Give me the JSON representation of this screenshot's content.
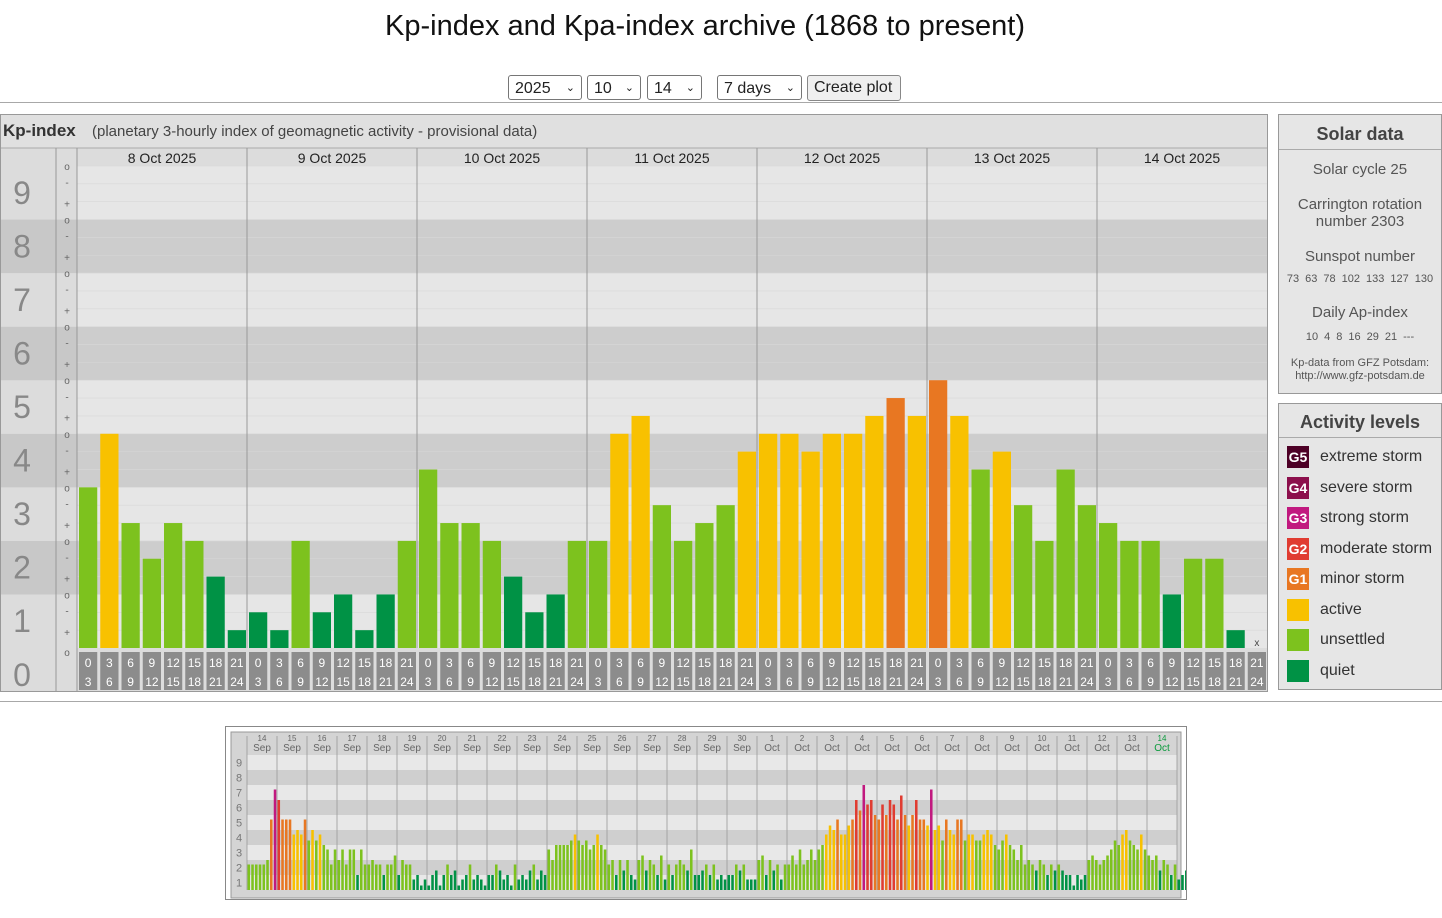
{
  "page": {
    "title": "Kp-index and Kpa-index archive (1868 to present)"
  },
  "controls": {
    "year": "2025",
    "month": "10",
    "day": "14",
    "range": "7 days",
    "create_button": "Create plot"
  },
  "colors": {
    "quiet": "#009245",
    "unsettled": "#7dc21e",
    "active": "#f8c100",
    "minor_storm": "#e87722",
    "moderate_storm": "#e03c31",
    "strong_storm": "#c1197f",
    "severe_storm": "#8c0f4c",
    "extreme_storm": "#4d0026"
  },
  "chart_data": [
    {
      "type": "bar",
      "title": "Kp-index",
      "subtitle": "(planetary 3-hourly index of geomagnetic activity - provisional data)",
      "ylim": [
        0,
        9
      ],
      "y_ticks": [
        "0",
        "1",
        "2",
        "3",
        "4",
        "5",
        "6",
        "7",
        "8",
        "9"
      ],
      "y_minor_ticks": [
        "-",
        "o",
        "+"
      ],
      "days": [
        "8 Oct 2025",
        "9 Oct 2025",
        "10 Oct 2025",
        "11 Oct 2025",
        "12 Oct 2025",
        "13 Oct 2025",
        "14 Oct 2025"
      ],
      "interval_labels": [
        [
          "0",
          "3"
        ],
        [
          "3",
          "6"
        ],
        [
          "6",
          "9"
        ],
        [
          "9",
          "12"
        ],
        [
          "12",
          "15"
        ],
        [
          "15",
          "18"
        ],
        [
          "18",
          "21"
        ],
        [
          "21",
          "24"
        ]
      ],
      "missing_marker": "x",
      "values": [
        3.0,
        4.0,
        2.333,
        1.667,
        2.333,
        2.0,
        1.333,
        0.333,
        0.667,
        0.333,
        2.0,
        0.667,
        1.0,
        0.333,
        1.0,
        2.0,
        3.333,
        2.333,
        2.333,
        2.0,
        1.333,
        0.667,
        1.0,
        2.0,
        2.0,
        4.0,
        4.333,
        2.667,
        2.0,
        2.333,
        2.667,
        3.667,
        4.0,
        4.0,
        3.667,
        4.0,
        4.0,
        4.333,
        4.667,
        4.333,
        5.0,
        4.333,
        3.333,
        3.667,
        2.667,
        2.0,
        3.333,
        2.667,
        2.333,
        2.0,
        2.0,
        1.0,
        1.667,
        1.667,
        0.333,
        null
      ]
    },
    {
      "type": "bar",
      "title": "",
      "ylim": [
        0,
        9
      ],
      "y_ticks": [
        "1",
        "2",
        "3",
        "4",
        "5",
        "6",
        "7",
        "8",
        "9"
      ],
      "days": [
        {
          "d": "14",
          "m": "Sep"
        },
        {
          "d": "15",
          "m": "Sep"
        },
        {
          "d": "16",
          "m": "Sep"
        },
        {
          "d": "17",
          "m": "Sep"
        },
        {
          "d": "18",
          "m": "Sep"
        },
        {
          "d": "19",
          "m": "Sep"
        },
        {
          "d": "20",
          "m": "Sep"
        },
        {
          "d": "21",
          "m": "Sep"
        },
        {
          "d": "22",
          "m": "Sep"
        },
        {
          "d": "23",
          "m": "Sep"
        },
        {
          "d": "24",
          "m": "Sep"
        },
        {
          "d": "25",
          "m": "Sep"
        },
        {
          "d": "26",
          "m": "Sep"
        },
        {
          "d": "27",
          "m": "Sep"
        },
        {
          "d": "28",
          "m": "Sep"
        },
        {
          "d": "29",
          "m": "Sep"
        },
        {
          "d": "30",
          "m": "Sep"
        },
        {
          "d": "1",
          "m": "Oct"
        },
        {
          "d": "2",
          "m": "Oct"
        },
        {
          "d": "3",
          "m": "Oct"
        },
        {
          "d": "4",
          "m": "Oct"
        },
        {
          "d": "5",
          "m": "Oct"
        },
        {
          "d": "6",
          "m": "Oct"
        },
        {
          "d": "7",
          "m": "Oct"
        },
        {
          "d": "8",
          "m": "Oct"
        },
        {
          "d": "9",
          "m": "Oct"
        },
        {
          "d": "10",
          "m": "Oct"
        },
        {
          "d": "11",
          "m": "Oct"
        },
        {
          "d": "12",
          "m": "Oct"
        },
        {
          "d": "13",
          "m": "Oct"
        },
        {
          "d": "14",
          "m": "Oct"
        }
      ],
      "highlight_day": "14 Oct",
      "values": [
        1.7,
        1.7,
        1.7,
        1.7,
        1.7,
        2.0,
        4.7,
        6.7,
        6.0,
        4.7,
        4.7,
        4.7,
        3.7,
        4.0,
        3.7,
        4.7,
        3.3,
        4.0,
        3.3,
        3.7,
        3.0,
        2.7,
        1.7,
        2.7,
        2.0,
        2.7,
        1.7,
        2.7,
        2.7,
        1.0,
        2.7,
        1.7,
        1.7,
        2.0,
        1.7,
        1.7,
        1.0,
        1.7,
        1.7,
        2.3,
        1.0,
        2.0,
        1.7,
        1.7,
        0.7,
        1.0,
        0.3,
        0.7,
        0.3,
        1.0,
        1.3,
        0.3,
        1.0,
        1.7,
        1.0,
        1.3,
        0.3,
        0.7,
        1.0,
        1.7,
        0.7,
        1.0,
        0.7,
        0.3,
        1.0,
        1.0,
        1.7,
        1.3,
        0.7,
        1.0,
        0.3,
        1.7,
        0.7,
        1.0,
        0.7,
        1.3,
        1.7,
        0.7,
        1.3,
        1.0,
        2.7,
        2.0,
        3.0,
        3.0,
        3.0,
        3.0,
        3.3,
        3.7,
        3.3,
        3.0,
        3.3,
        2.7,
        3.0,
        3.7,
        3.0,
        2.7,
        1.7,
        2.0,
        1.0,
        2.0,
        1.3,
        2.0,
        1.0,
        0.7,
        2.0,
        2.3,
        1.3,
        2.0,
        1.7,
        1.0,
        2.3,
        0.7,
        1.7,
        1.0,
        1.7,
        2.0,
        1.7,
        1.3,
        2.7,
        1.0,
        1.0,
        1.3,
        1.7,
        1.0,
        1.7,
        0.7,
        1.0,
        0.7,
        1.0,
        1.0,
        1.7,
        1.3,
        1.7,
        0.7,
        0.7,
        0.7,
        2.0,
        2.3,
        1.0,
        2.0,
        1.3,
        1.7,
        0.7,
        1.7,
        1.7,
        2.3,
        1.7,
        2.7,
        1.7,
        2.0,
        2.7,
        2.0,
        2.7,
        3.0,
        3.7,
        4.3,
        4.0,
        4.7,
        3.7,
        3.7,
        4.3,
        4.7,
        6.0,
        5.3,
        7.0,
        5.7,
        6.0,
        5.0,
        4.7,
        5.7,
        5.0,
        6.0,
        5.7,
        4.7,
        6.3,
        5.0,
        4.3,
        5.0,
        6.0,
        4.7,
        4.7,
        4.3,
        6.7,
        4.0,
        4.3,
        3.3,
        4.7,
        4.0,
        3.7,
        4.7,
        4.7,
        3.3,
        3.7,
        3.7,
        3.3,
        3.3,
        3.7,
        4.0,
        3.7,
        3.0,
        2.7,
        3.3,
        3.7,
        3.0,
        2.7,
        2.0,
        3.0,
        1.7,
        2.0,
        1.7,
        1.3,
        2.0,
        1.7,
        1.0,
        1.7,
        1.3,
        1.7,
        1.3,
        1.0,
        1.0,
        0.3,
        1.0,
        0.7,
        1.0,
        2.0,
        2.3,
        2.0,
        1.7,
        2.0,
        2.3,
        2.7,
        3.3,
        3.0,
        3.7,
        4.0,
        3.3,
        3.0,
        2.7,
        3.7,
        2.7,
        2.3,
        2.0,
        2.3,
        1.3,
        2.0,
        1.7,
        1.0,
        1.7,
        0.7,
        1.0,
        1.3,
        0.7,
        1.0,
        0.3,
        1.0,
        0.7,
        2.3,
        1.7,
        2.0,
        1.7,
        1.0,
        1.7,
        1.0,
        1.7,
        2.0,
        1.7,
        1.3,
        2.0,
        1.7,
        1.0,
        1.3,
        1.7,
        1.7,
        2.0,
        1.7,
        2.3,
        1.7,
        1.0,
        1.3,
        2.0,
        1.7,
        2.0,
        2.7,
        2.3,
        3.0,
        3.3,
        3.7,
        3.0,
        3.3,
        2.7,
        3.0,
        4.0,
        3.7,
        4.3,
        4.7,
        4.0,
        4.0,
        3.7,
        3.3,
        3.0,
        2.7,
        2.7,
        3.7,
        2.3,
        2.0,
        2.3,
        2.0,
        2.3,
        1.7,
        2.0,
        1.3,
        1.0,
        2.0,
        1.7,
        1.7,
        1.0,
        1.3,
        1.3,
        0.7,
        0.3
      ]
    }
  ],
  "solar": {
    "title": "Solar data",
    "cycle": "Solar cycle 25",
    "carrington_line1": "Carrington rotation",
    "carrington_line2": "number 2303",
    "sunspot_label": "Sunspot number",
    "sunspot_values": [
      "73",
      "63",
      "78",
      "102",
      "133",
      "127",
      "130"
    ],
    "ap_label": "Daily Ap-index",
    "ap_values": [
      "10",
      "4",
      "8",
      "16",
      "29",
      "21",
      "---"
    ],
    "source_line1": "Kp-data from GFZ Potsdam:",
    "source_line2": "http://www.gfz-potsdam.de"
  },
  "legend": {
    "title": "Activity levels",
    "items": [
      {
        "badge": "G5",
        "label": "extreme storm",
        "color": "#4d0026"
      },
      {
        "badge": "G4",
        "label": "severe storm",
        "color": "#8c0f4c"
      },
      {
        "badge": "G3",
        "label": "strong storm",
        "color": "#c1197f"
      },
      {
        "badge": "G2",
        "label": "moderate storm",
        "color": "#e03c31"
      },
      {
        "badge": "G1",
        "label": "minor storm",
        "color": "#e87722"
      },
      {
        "badge": "",
        "label": "active",
        "color": "#f8c100"
      },
      {
        "badge": "",
        "label": "unsettled",
        "color": "#7dc21e"
      },
      {
        "badge": "",
        "label": "quiet",
        "color": "#009245"
      }
    ]
  }
}
